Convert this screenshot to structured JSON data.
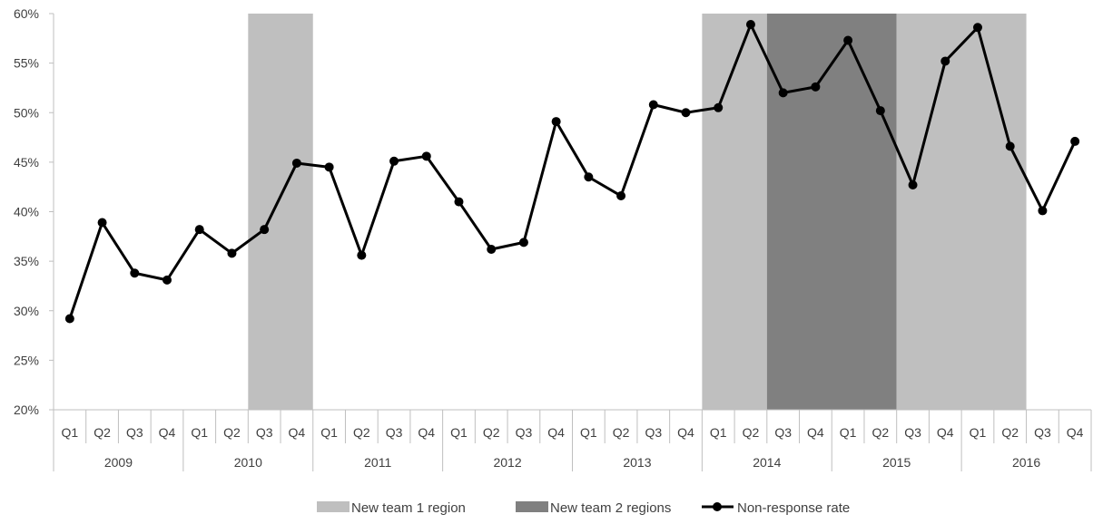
{
  "chart_data": {
    "type": "line",
    "title": "",
    "xlabel": "",
    "ylabel": "",
    "ylim": [
      20,
      60
    ],
    "yticks": [
      "20%",
      "25%",
      "30%",
      "35%",
      "40%",
      "45%",
      "50%",
      "55%",
      "60%"
    ],
    "years": [
      "2009",
      "2010",
      "2011",
      "2012",
      "2013",
      "2014",
      "2015",
      "2016"
    ],
    "quarters": [
      "Q1",
      "Q2",
      "Q3",
      "Q4"
    ],
    "categories": [
      "2009 Q1",
      "2009 Q2",
      "2009 Q3",
      "2009 Q4",
      "2010 Q1",
      "2010 Q2",
      "2010 Q3",
      "2010 Q4",
      "2011 Q1",
      "2011 Q2",
      "2011 Q3",
      "2011 Q4",
      "2012 Q1",
      "2012 Q2",
      "2012 Q3",
      "2012 Q4",
      "2013 Q1",
      "2013 Q2",
      "2013 Q3",
      "2013 Q4",
      "2014 Q1",
      "2014 Q2",
      "2014 Q3",
      "2014 Q4",
      "2015 Q1",
      "2015 Q2",
      "2015 Q3",
      "2015 Q4",
      "2016 Q1",
      "2016 Q2",
      "2016 Q3",
      "2016 Q4"
    ],
    "series": [
      {
        "name": "Non-response rate",
        "color": "#000000",
        "values": [
          29.2,
          38.9,
          33.8,
          33.1,
          38.2,
          35.8,
          38.2,
          44.9,
          44.5,
          35.6,
          45.1,
          45.6,
          41.0,
          36.2,
          36.9,
          49.1,
          43.5,
          41.6,
          50.8,
          50.0,
          50.5,
          58.9,
          52.0,
          52.6,
          57.3,
          50.2,
          42.7,
          55.2,
          58.6,
          46.6,
          40.1,
          47.1
        ]
      }
    ],
    "shaded_regions": [
      {
        "name": "New team 1 region",
        "color": "#bfbfbf",
        "start": "2010 Q3",
        "end": "2010 Q4"
      },
      {
        "name": "New team 1 region",
        "color": "#bfbfbf",
        "start": "2014 Q1",
        "end": "2014 Q2"
      },
      {
        "name": "New team 2 regions",
        "color": "#808080",
        "start": "2014 Q3",
        "end": "2015 Q2"
      },
      {
        "name": "New team 1 region",
        "color": "#bfbfbf",
        "start": "2015 Q3",
        "end": "2016 Q2"
      }
    ],
    "legend": {
      "position": "bottom",
      "items": [
        {
          "label": "New team 1 region",
          "kind": "box",
          "color": "#bfbfbf"
        },
        {
          "label": "New team 2 regions",
          "kind": "box",
          "color": "#808080"
        },
        {
          "label": "Non-response rate",
          "kind": "line-marker",
          "color": "#000000"
        }
      ]
    },
    "grid": false
  }
}
